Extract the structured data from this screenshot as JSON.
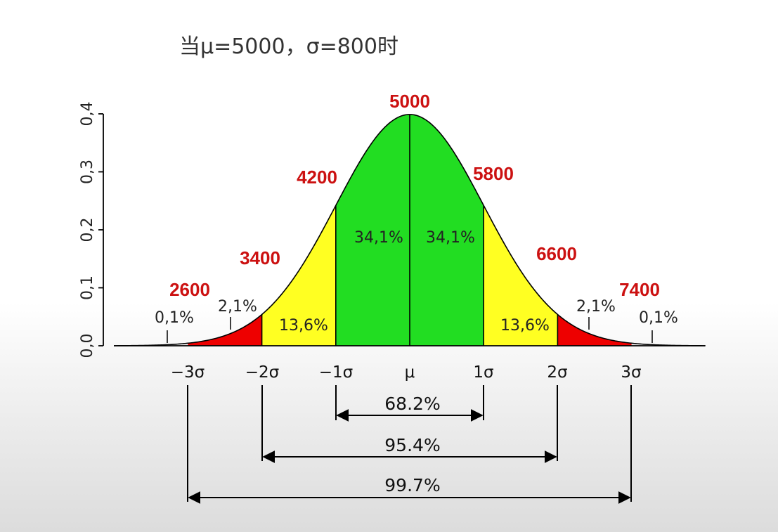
{
  "title": "当μ=5000，σ=800时",
  "y_ticks": [
    "0,0",
    "0,1",
    "0,2",
    "0,3",
    "0,4"
  ],
  "x_ticks": [
    "−3σ",
    "−2σ",
    "−1σ",
    "μ",
    "1σ",
    "2σ",
    "3σ"
  ],
  "value_labels": [
    "2600",
    "3400",
    "4200",
    "5000",
    "5800",
    "6600",
    "7400"
  ],
  "band_percentages": {
    "tail_left": "0,1%",
    "red_left": "2,1%",
    "yellow_left": "13,6%",
    "green_left": "34,1%",
    "green_right": "34,1%",
    "yellow_right": "13,6%",
    "red_right": "2,1%",
    "tail_right": "0,1%"
  },
  "ranges": [
    "68.2%",
    "95.4%",
    "99.7%"
  ],
  "colors": {
    "green": "#22dd22",
    "yellow": "#ffff22",
    "red": "#ee0000",
    "value_label": "#cc1111"
  }
}
